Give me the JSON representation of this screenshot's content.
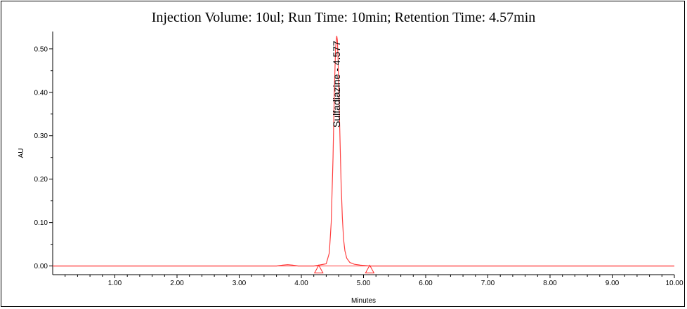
{
  "chart_data": {
    "type": "line",
    "title": "Injection Volume: 10ul; Run Time: 10min; Retention Time: 4.57min",
    "xlabel": "Minutes",
    "ylabel": "AU",
    "xlim": [
      0.0,
      10.0
    ],
    "ylim": [
      -0.02,
      0.54
    ],
    "x_ticks": [
      1.0,
      2.0,
      3.0,
      4.0,
      5.0,
      6.0,
      7.0,
      8.0,
      9.0,
      10.0
    ],
    "x_tick_labels": [
      "1.00",
      "2.00",
      "3.00",
      "4.00",
      "5.00",
      "6.00",
      "7.00",
      "8.00",
      "9.00",
      "10.00"
    ],
    "y_ticks": [
      0.0,
      0.1,
      0.2,
      0.3,
      0.4,
      0.5
    ],
    "y_tick_labels": [
      "0.00",
      "0.10",
      "0.20",
      "0.30",
      "0.40",
      "0.50"
    ],
    "grid": false,
    "line_color": "#ff4040",
    "marker_color": "#ff2020",
    "series": [
      {
        "x": [
          0.0,
          3.6,
          3.7,
          3.78,
          3.86,
          3.95,
          4.2,
          4.4,
          4.45,
          4.48,
          4.51,
          4.53,
          4.55,
          4.56,
          4.57,
          4.58,
          4.59,
          4.6,
          4.62,
          4.64,
          4.66,
          4.68,
          4.7,
          4.73,
          4.78,
          4.85,
          4.95,
          5.1,
          5.3,
          10.0
        ],
        "values": [
          0.0,
          0.0,
          0.002,
          0.003,
          0.002,
          0.0,
          0.0,
          0.005,
          0.03,
          0.1,
          0.25,
          0.4,
          0.5,
          0.52,
          0.53,
          0.52,
          0.48,
          0.42,
          0.3,
          0.19,
          0.11,
          0.06,
          0.035,
          0.018,
          0.008,
          0.004,
          0.002,
          0.0,
          0.0,
          0.0
        ]
      }
    ],
    "annotations": [
      {
        "text": "Sulfadiazine - 4.577",
        "x": 4.577,
        "y": 0.53
      }
    ],
    "markers": [
      {
        "type": "triangle",
        "x": 4.28,
        "y": -0.008
      },
      {
        "type": "triangle",
        "x": 5.1,
        "y": -0.008
      }
    ]
  }
}
